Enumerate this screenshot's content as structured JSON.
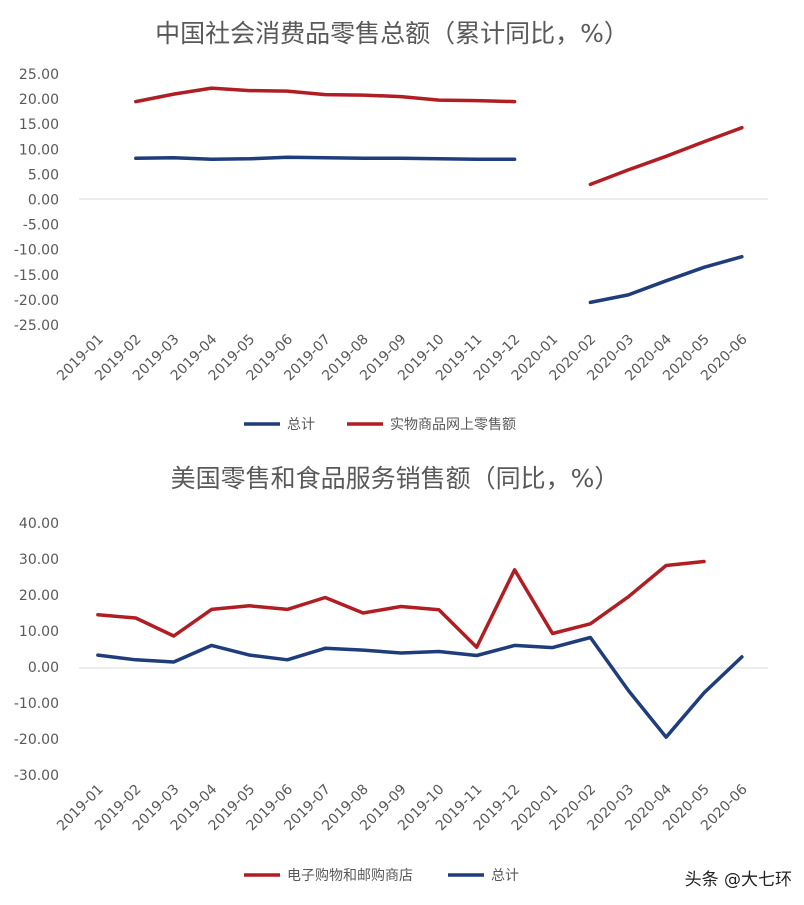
{
  "colors": {
    "total": "#1f3d7a",
    "online": "#b01e24",
    "text": "#595959",
    "axis": "#d9d9d9"
  },
  "chart_data": [
    {
      "type": "line",
      "title": "中国社会消费品零售总额（累计同比，%）",
      "categories": [
        "2019-01",
        "2019-02",
        "2019-03",
        "2019-04",
        "2019-05",
        "2019-06",
        "2019-07",
        "2019-08",
        "2019-09",
        "2019-10",
        "2019-11",
        "2019-12",
        "2020-01",
        "2020-02",
        "2020-03",
        "2020-04",
        "2020-05",
        "2020-06"
      ],
      "ylim": [
        -25,
        25
      ],
      "yticks": [
        "25.00",
        "20.00",
        "15.00",
        "10.00",
        "5.00",
        "0.00",
        "-5.00",
        "-10.00",
        "-15.00",
        "-20.00",
        "-25.00"
      ],
      "series": [
        {
          "name": "总计",
          "color": "#1f3d7a",
          "values": [
            null,
            8.2,
            8.3,
            8.0,
            8.1,
            8.4,
            8.3,
            8.2,
            8.2,
            8.1,
            8.0,
            8.0,
            null,
            -20.5,
            -19.0,
            -16.2,
            -13.5,
            -11.4
          ]
        },
        {
          "name": "实物商品网上零售额",
          "color": "#b01e24",
          "values": [
            null,
            19.5,
            21.0,
            22.2,
            21.7,
            21.6,
            20.9,
            20.8,
            20.5,
            19.8,
            19.7,
            19.5,
            null,
            3.0,
            5.9,
            8.6,
            11.5,
            14.3
          ]
        }
      ],
      "legend": [
        {
          "name": "总计",
          "color": "#1f3d7a"
        },
        {
          "name": "实物商品网上零售额",
          "color": "#b01e24"
        }
      ],
      "grid": false,
      "legend_position": "bottom"
    },
    {
      "type": "line",
      "title": "美国零售和食品服务销售额（同比，%）",
      "categories": [
        "2019-01",
        "2019-02",
        "2019-03",
        "2019-04",
        "2019-05",
        "2019-06",
        "2019-07",
        "2019-08",
        "2019-09",
        "2019-10",
        "2019-11",
        "2019-12",
        "2020-01",
        "2020-02",
        "2020-03",
        "2020-04",
        "2020-05",
        "2020-06"
      ],
      "ylim": [
        -30,
        40
      ],
      "yticks": [
        "40.00",
        "30.00",
        "20.00",
        "10.00",
        "0.00",
        "-10.00",
        "-20.00",
        "-30.00"
      ],
      "series": [
        {
          "name": "电子购物和邮购商店",
          "color": "#b01e24",
          "values": [
            14.5,
            13.6,
            8.6,
            16.0,
            17.0,
            16.0,
            19.3,
            15.0,
            16.8,
            15.9,
            5.5,
            27.0,
            9.3,
            12.0,
            19.5,
            28.2,
            29.3,
            null
          ]
        },
        {
          "name": "总计",
          "color": "#1f3d7a",
          "values": [
            3.3,
            2.0,
            1.4,
            6.0,
            3.3,
            2.0,
            5.2,
            4.7,
            3.9,
            4.3,
            3.2,
            6.0,
            5.4,
            8.2,
            -6.5,
            -19.5,
            -7.2,
            2.8
          ]
        }
      ],
      "legend": [
        {
          "name": "电子购物和邮购商店",
          "color": "#b01e24"
        },
        {
          "name": "总计",
          "color": "#1f3d7a"
        }
      ],
      "grid": false,
      "legend_position": "bottom"
    }
  ],
  "watermark": {
    "text": "头条 @大七环"
  }
}
